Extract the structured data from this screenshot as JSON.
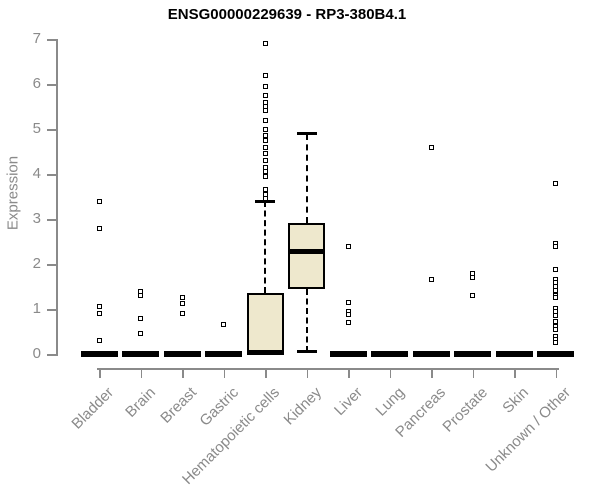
{
  "chart_data": {
    "type": "boxplot",
    "title": "ENSG00000229639 - RP3-380B4.1",
    "ylabel": "Expression",
    "xlabel": "",
    "ylim": [
      0,
      7
    ],
    "yticks": [
      0,
      1,
      2,
      3,
      4,
      5,
      6,
      7
    ],
    "grid": false,
    "legend": "none",
    "categories": [
      "Bladder",
      "Brain",
      "Breast",
      "Gastric",
      "Hematopoietic cells",
      "Kidney",
      "Liver",
      "Lung",
      "Pancreas",
      "Prostate",
      "Skin",
      "Unknown / Other"
    ],
    "series": [
      {
        "name": "Bladder",
        "q1": 0,
        "median": 0,
        "q3": 0,
        "whisker_low": 0,
        "whisker_high": 0,
        "outliers": [
          3.4,
          2.8,
          1.05,
          0.9,
          0.3
        ]
      },
      {
        "name": "Brain",
        "q1": 0,
        "median": 0,
        "q3": 0,
        "whisker_low": 0,
        "whisker_high": 0,
        "outliers": [
          1.4,
          1.3,
          0.78,
          0.45
        ]
      },
      {
        "name": "Breast",
        "q1": 0,
        "median": 0,
        "q3": 0,
        "whisker_low": 0,
        "whisker_high": 0,
        "outliers": [
          1.25,
          1.12,
          0.9
        ]
      },
      {
        "name": "Gastric",
        "q1": 0,
        "median": 0,
        "q3": 0,
        "whisker_low": 0,
        "whisker_high": 0,
        "outliers": [
          0.65
        ]
      },
      {
        "name": "Hematopoietic cells",
        "q1": 0,
        "median": 0.03,
        "q3": 1.35,
        "whisker_low": 0,
        "whisker_high": 3.4,
        "outliers": [
          6.9,
          6.2,
          5.95,
          5.75,
          5.6,
          5.5,
          5.42,
          5.2,
          5.0,
          4.85,
          4.75,
          4.6,
          4.45,
          4.3,
          4.15,
          4.05,
          3.95,
          3.65,
          3.55,
          3.45
        ]
      },
      {
        "name": "Kidney",
        "q1": 1.45,
        "median": 2.28,
        "q3": 2.92,
        "whisker_low": 0.05,
        "whisker_high": 4.9,
        "outliers": []
      },
      {
        "name": "Liver",
        "q1": 0,
        "median": 0,
        "q3": 0,
        "whisker_low": 0,
        "whisker_high": 0,
        "outliers": [
          2.4,
          1.15,
          0.95,
          0.88,
          0.7
        ]
      },
      {
        "name": "Lung",
        "q1": 0,
        "median": 0,
        "q3": 0,
        "whisker_low": 0,
        "whisker_high": 0,
        "outliers": []
      },
      {
        "name": "Pancreas",
        "q1": 0,
        "median": 0,
        "q3": 0,
        "whisker_low": 0,
        "whisker_high": 0,
        "outliers": [
          4.6,
          1.65
        ]
      },
      {
        "name": "Prostate",
        "q1": 0,
        "median": 0,
        "q3": 0,
        "whisker_low": 0,
        "whisker_high": 0,
        "outliers": [
          1.8,
          1.7,
          1.3
        ]
      },
      {
        "name": "Skin",
        "q1": 0,
        "median": 0,
        "q3": 0,
        "whisker_low": 0,
        "whisker_high": 0,
        "outliers": []
      },
      {
        "name": "Unknown / Other",
        "q1": 0,
        "median": 0,
        "q3": 0,
        "whisker_low": 0,
        "whisker_high": 0,
        "outliers": [
          3.8,
          2.45,
          2.4,
          1.88,
          1.65,
          1.58,
          1.5,
          1.42,
          1.3,
          1.25,
          1.02,
          0.95,
          0.85,
          0.72,
          0.62,
          0.55,
          0.4,
          0.32,
          0.25
        ]
      }
    ],
    "colors": {
      "box_fill": "#EEE8CD",
      "box_stroke": "#000000",
      "axis": "#8A8A8A",
      "title": "#000000",
      "background": "#FFFFFF"
    }
  }
}
